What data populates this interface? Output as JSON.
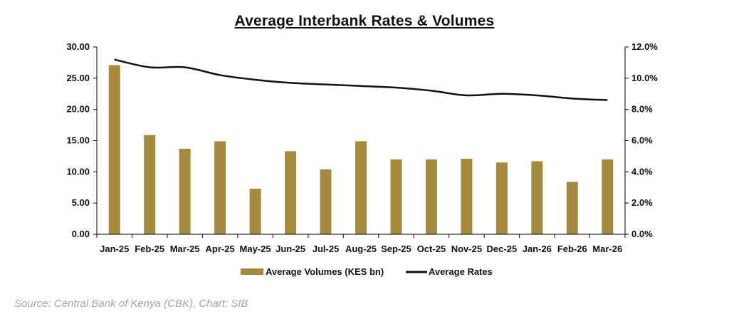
{
  "chart_data": {
    "type": "bar",
    "title": "Average Interbank Rates & Volumes",
    "categories": [
      "Jan-25",
      "Feb-25",
      "Mar-25",
      "Apr-25",
      "May-25",
      "Jun-25",
      "Jul-25",
      "Aug-25",
      "Sep-25",
      "Oct-25",
      "Nov-25",
      "Dec-25",
      "Jan-26",
      "Feb-26",
      "Mar-26"
    ],
    "series": [
      {
        "name": "Average Volumes (KES bn)",
        "type": "bar",
        "axis": "left",
        "color": "#a68a3d",
        "values": [
          27.1,
          15.9,
          13.7,
          14.9,
          7.3,
          13.3,
          10.4,
          14.9,
          12.0,
          12.0,
          12.1,
          11.5,
          11.7,
          8.4,
          12.0
        ]
      },
      {
        "name": "Average Rates",
        "type": "line",
        "axis": "right",
        "color": "#111111",
        "values": [
          11.2,
          10.7,
          10.7,
          10.2,
          9.9,
          9.7,
          9.6,
          9.5,
          9.4,
          9.2,
          8.9,
          9.0,
          8.9,
          8.7,
          8.6
        ]
      }
    ],
    "y_left": {
      "min": 0,
      "max": 30,
      "step": 5,
      "tick_labels": [
        "0.00",
        "5.00",
        "10.00",
        "15.00",
        "20.00",
        "25.00",
        "30.00"
      ]
    },
    "y_right": {
      "min": 0,
      "max": 12,
      "step": 2,
      "tick_labels": [
        "0.0%",
        "2.0%",
        "4.0%",
        "6.0%",
        "8.0%",
        "10.0%",
        "12.0%"
      ]
    },
    "grid": false,
    "legend_position": "bottom"
  },
  "source_note": "Source: Central Bank of Kenya (CBK), Chart: SIB"
}
